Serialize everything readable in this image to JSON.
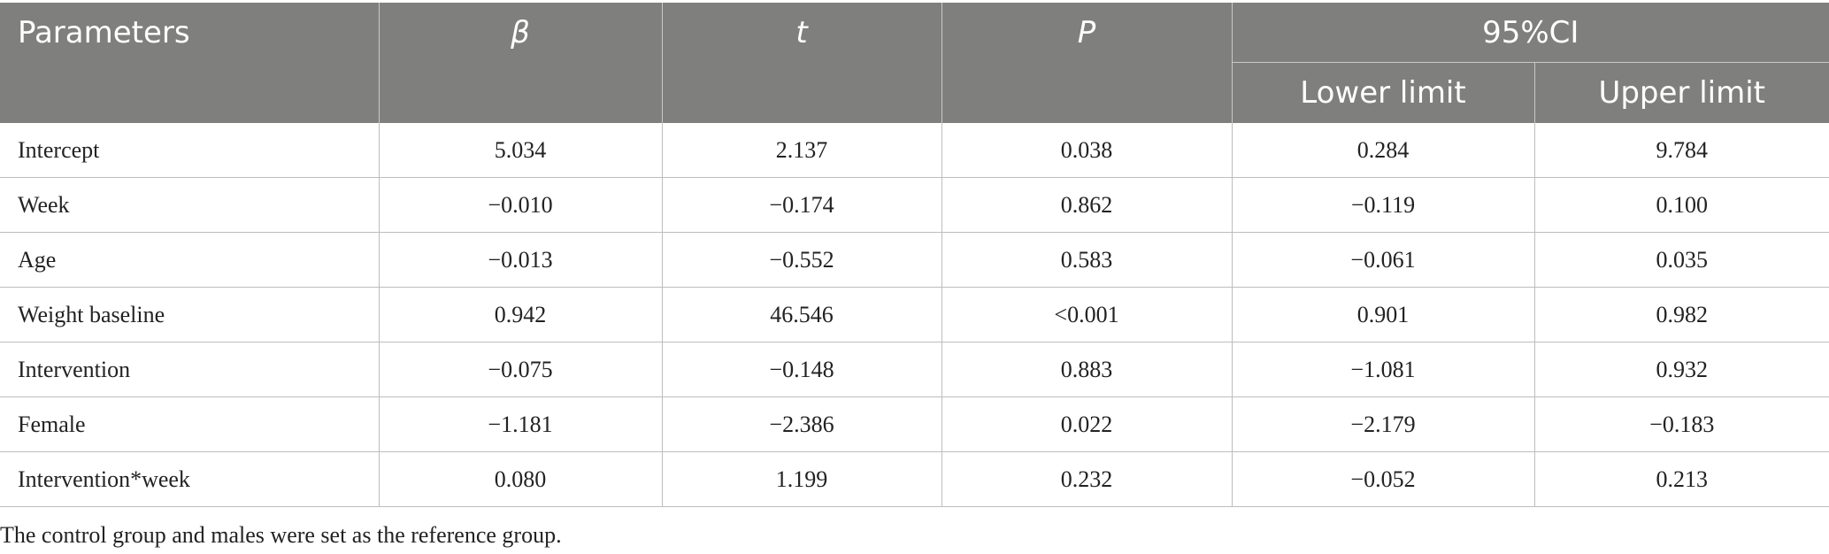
{
  "table": {
    "headers": {
      "parameters": "Parameters",
      "beta": "β",
      "t": "t",
      "p": "P",
      "ci": "95%CI",
      "lower": "Lower limit",
      "upper": "Upper limit"
    },
    "rows": [
      {
        "label": "Intercept",
        "beta": "5.034",
        "t": "2.137",
        "p": "0.038",
        "lower": "0.284",
        "upper": "9.784"
      },
      {
        "label": "Week",
        "beta": "−0.010",
        "t": "−0.174",
        "p": "0.862",
        "lower": "−0.119",
        "upper": "0.100"
      },
      {
        "label": "Age",
        "beta": "−0.013",
        "t": "−0.552",
        "p": "0.583",
        "lower": "−0.061",
        "upper": "0.035"
      },
      {
        "label": "Weight baseline",
        "beta": "0.942",
        "t": "46.546",
        "p": "<0.001",
        "lower": "0.901",
        "upper": "0.982"
      },
      {
        "label": "Intervention",
        "beta": "−0.075",
        "t": "−0.148",
        "p": "0.883",
        "lower": "−1.081",
        "upper": "0.932"
      },
      {
        "label": "Female",
        "beta": "−1.181",
        "t": "−2.386",
        "p": "0.022",
        "lower": "−2.179",
        "upper": "−0.183"
      },
      {
        "label": "Intervention*week",
        "beta": "0.080",
        "t": "1.199",
        "p": "0.232",
        "lower": "−0.052",
        "upper": "0.213"
      }
    ]
  },
  "footnote": "The control group and males were set as the reference group.",
  "colors": {
    "header_bg": "#7f807e",
    "header_text": "#ffffff",
    "body_text": "#222222",
    "grid_line": "#bdbdbd"
  }
}
